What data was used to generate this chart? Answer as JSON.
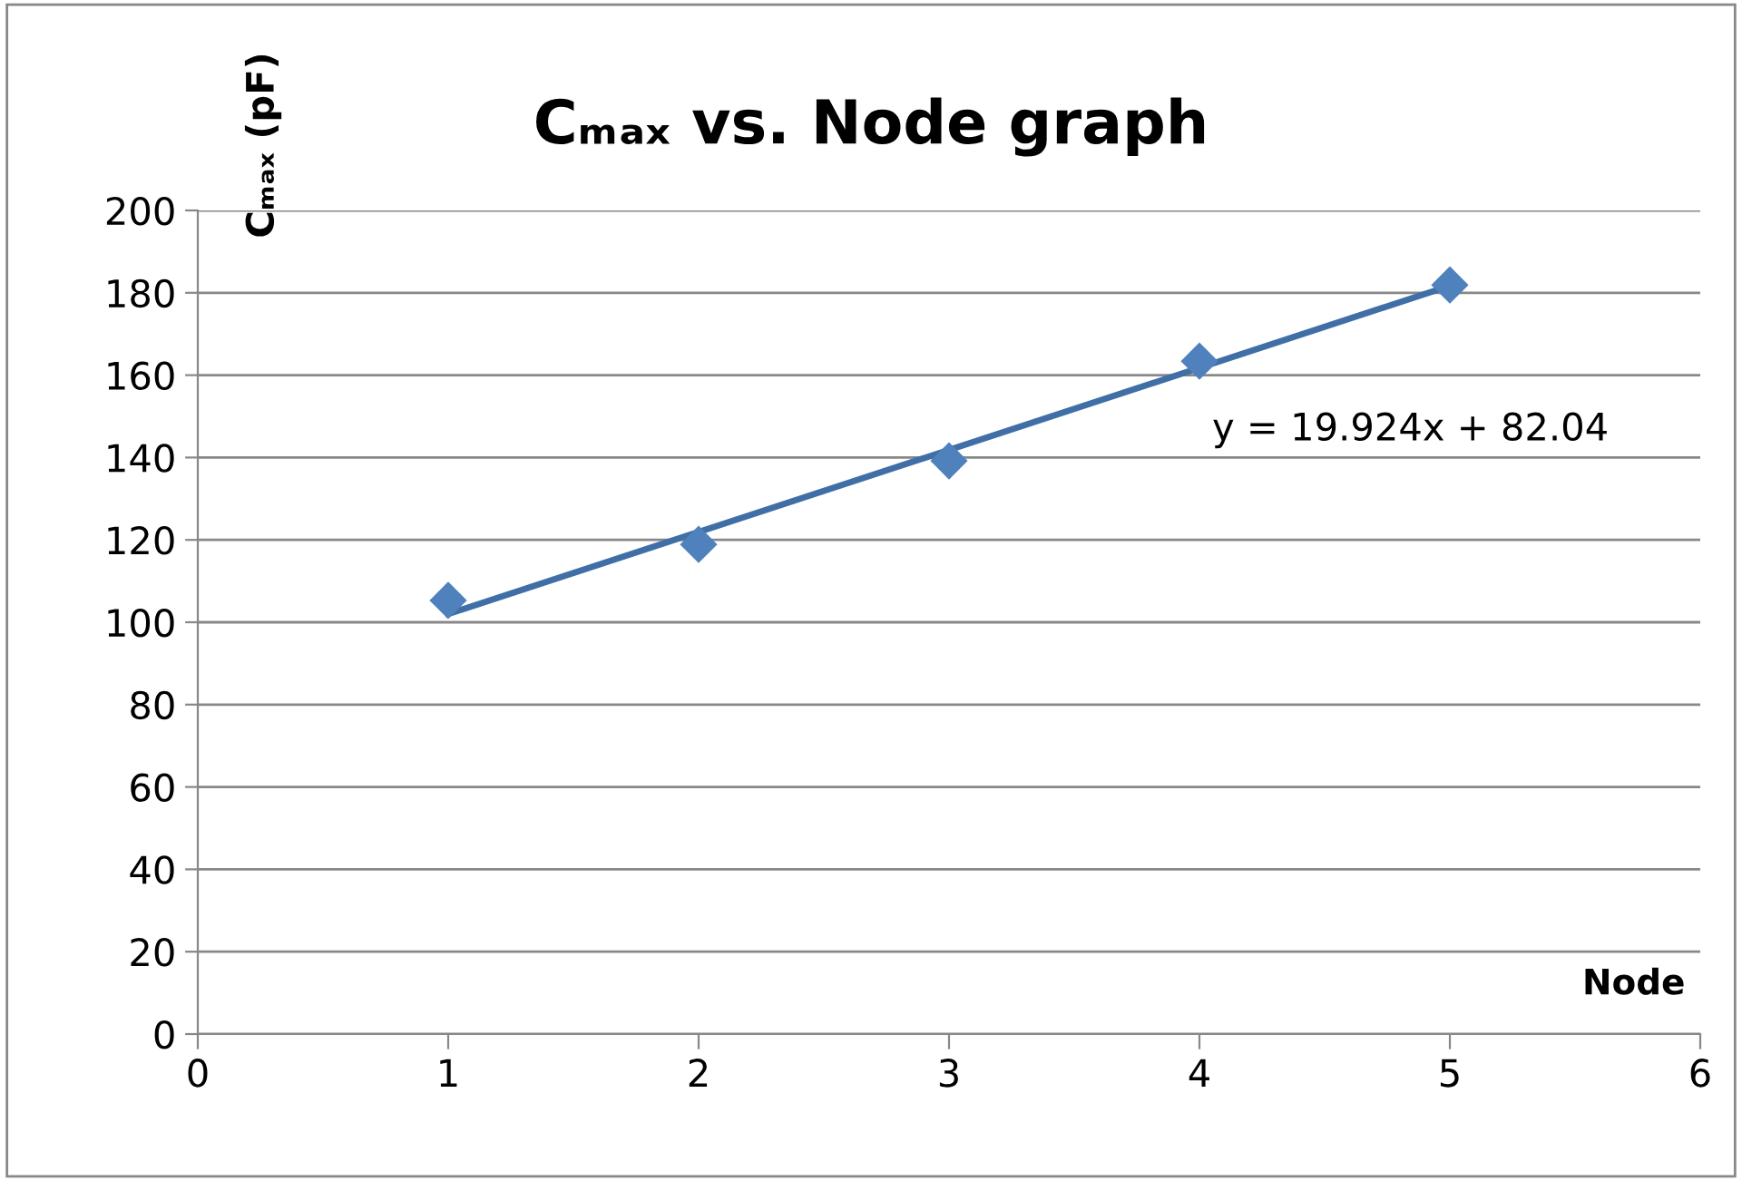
{
  "chart_data": {
    "type": "scatter",
    "title": "Cₘₐₓ vs. Node graph",
    "xlabel": "Node",
    "ylabel": "Cₘₐₓ (pF)",
    "xlim": [
      0,
      6
    ],
    "xticks": [
      0,
      1,
      2,
      3,
      4,
      5,
      6
    ],
    "ylim": [
      0,
      200
    ],
    "yticks": [
      0,
      20,
      40,
      60,
      80,
      100,
      120,
      140,
      160,
      180,
      200
    ],
    "grid": "y",
    "legend": false,
    "series": [
      {
        "x": [
          1,
          2,
          3,
          4,
          5
        ],
        "values": [
          105.3,
          118.9,
          139.2,
          163.4,
          181.9
        ],
        "color": "#4f81bd",
        "marker": "diamond"
      },
      {
        "type": "line",
        "x": [
          1,
          5
        ],
        "values": [
          102,
          181.7
        ],
        "color": "#3f6fa6",
        "marker": "none",
        "line_style": "solid"
      }
    ],
    "annotations": [
      "y = 19.924x + 82.04"
    ]
  }
}
